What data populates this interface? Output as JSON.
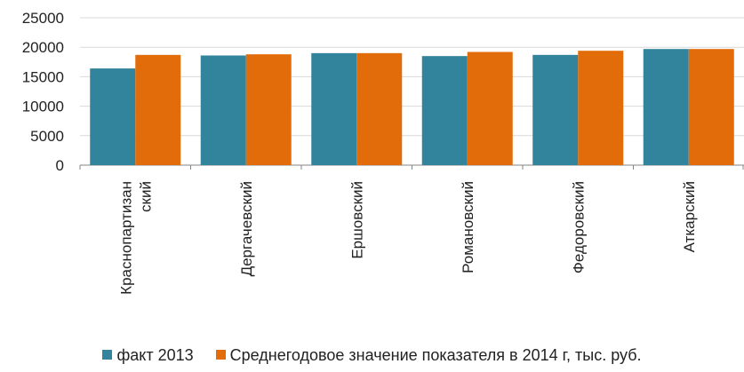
{
  "chart_data": {
    "type": "bar",
    "categories": [
      [
        "Краснопартизан",
        "ский"
      ],
      [
        "Дергачевский"
      ],
      [
        "Ершовский"
      ],
      [
        "Романовский"
      ],
      [
        "Федоровский"
      ],
      [
        "Аткарский"
      ]
    ],
    "series": [
      {
        "name": "факт 2013",
        "color": "#31849b",
        "values": [
          16400,
          18600,
          19000,
          18500,
          18700,
          19700
        ]
      },
      {
        "name": "Среднегодовое значение показателя в 2014 г, тыс. руб.",
        "color": "#e36c0a",
        "values": [
          18700,
          18800,
          19000,
          19200,
          19400,
          19700
        ]
      }
    ],
    "ylim": [
      0,
      25000
    ],
    "yticks": [
      0,
      5000,
      10000,
      15000,
      20000,
      25000
    ],
    "grid": true,
    "legend_position": "bottom"
  }
}
